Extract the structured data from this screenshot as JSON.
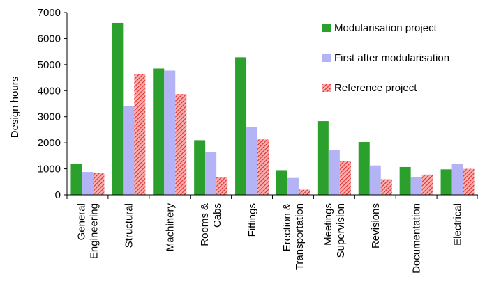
{
  "chart_data": {
    "type": "bar",
    "ylabel": "Design hours",
    "xlabel": "",
    "ylim": [
      0,
      7000
    ],
    "yticks": [
      0,
      1000,
      2000,
      3000,
      4000,
      5000,
      6000,
      7000
    ],
    "grid": false,
    "legend_position": "top-right",
    "categories": [
      [
        "General",
        "Engineering"
      ],
      [
        "Structural"
      ],
      [
        "Machinery"
      ],
      [
        "Rooms &",
        "Cabs"
      ],
      [
        "Fittings"
      ],
      [
        "Erection &",
        "Transportation"
      ],
      [
        "Meetings",
        "Supervision"
      ],
      [
        "Revisions"
      ],
      [
        "Documentation"
      ],
      [
        "Electrical"
      ]
    ],
    "series": [
      {
        "name": "Modularisation project",
        "color": "#2ca02c",
        "pattern": "solid",
        "values": [
          1200,
          6600,
          4850,
          2100,
          5280,
          950,
          2830,
          2030,
          1070,
          980
        ]
      },
      {
        "name": "First after modularisation",
        "color": "#b3b3f5",
        "pattern": "solid",
        "values": [
          880,
          3420,
          4770,
          1650,
          2600,
          650,
          1720,
          1130,
          680,
          1200
        ]
      },
      {
        "name": "Reference project",
        "color": "#f05a5a",
        "pattern": "hatched",
        "values": [
          840,
          4650,
          3870,
          680,
          2130,
          200,
          1300,
          600,
          780,
          1000
        ]
      }
    ]
  }
}
